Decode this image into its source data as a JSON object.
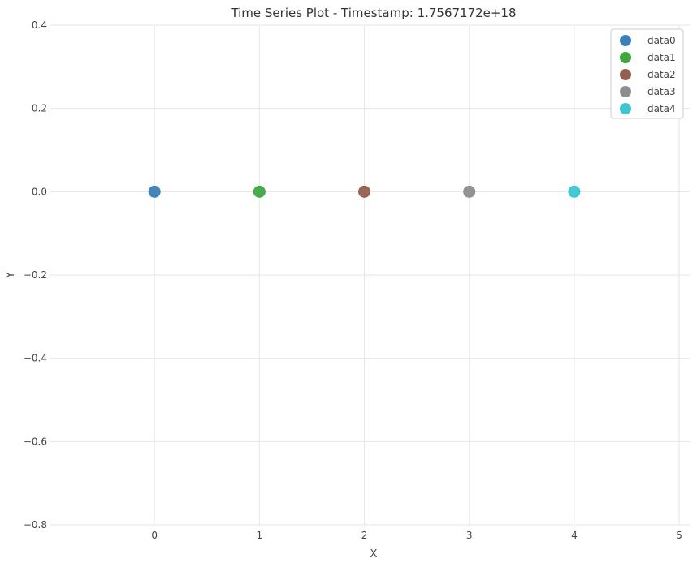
{
  "chart_data": {
    "type": "scatter",
    "title": "Time Series Plot - Timestamp: 1.7567172e+18",
    "xlabel": "X",
    "ylabel": "Y",
    "xlim": [
      -1,
      5.1
    ],
    "ylim": [
      -0.8,
      0.4
    ],
    "xticks": [
      "0",
      "1",
      "2",
      "3",
      "4",
      "5"
    ],
    "xtick_values": [
      0,
      1,
      2,
      3,
      4,
      5
    ],
    "yticks": [
      "0.4",
      "0.2",
      "0.0",
      "−0.2",
      "−0.4",
      "−0.6",
      "−0.8"
    ],
    "ytick_values": [
      0.4,
      0.2,
      0.0,
      -0.2,
      -0.4,
      -0.6,
      -0.8
    ],
    "grid": true,
    "legend_position": "top-right",
    "series": [
      {
        "name": "data0",
        "color": "#3a7fb8",
        "x": [
          0
        ],
        "y": [
          0.0
        ]
      },
      {
        "name": "data1",
        "color": "#3fa63f",
        "x": [
          1
        ],
        "y": [
          0.0
        ]
      },
      {
        "name": "data2",
        "color": "#936050",
        "x": [
          2
        ],
        "y": [
          0.0
        ]
      },
      {
        "name": "data3",
        "color": "#8e8e8e",
        "x": [
          3
        ],
        "y": [
          0.0
        ]
      },
      {
        "name": "data4",
        "color": "#3cc6d2",
        "x": [
          4
        ],
        "y": [
          0.0
        ]
      }
    ]
  }
}
